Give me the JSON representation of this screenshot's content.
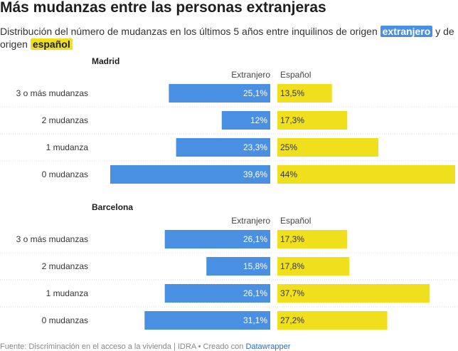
{
  "title": "Más mudanzas entre las personas extranjeras",
  "subtitle": {
    "text_before": "Distribución del número de mudanzas en los últimos 5 años entre inquilinos de origen ",
    "highlight_blue": "extranjero",
    "text_middle": " y de origen ",
    "highlight_yellow": "español"
  },
  "colors": {
    "extranjero": "#4a90e2",
    "espanol": "#f0df1c",
    "grid": "#dddddd"
  },
  "chart_data": [
    {
      "type": "bar",
      "panel_title": "Madrid",
      "categories": [
        "3 o más mudanzas",
        "2 mudanzas",
        "1 mudanza",
        "0 mudanzas"
      ],
      "series": [
        {
          "name": "Extranjero",
          "values": [
            25.1,
            12,
            23.3,
            39.6
          ],
          "labels": [
            "25,1%",
            "12%",
            "23,3%",
            "39,6%"
          ]
        },
        {
          "name": "Español",
          "values": [
            13.5,
            17.3,
            25,
            44
          ],
          "labels": [
            "13,5%",
            "17,3%",
            "25%",
            "44%"
          ]
        }
      ]
    },
    {
      "type": "bar",
      "panel_title": "Barcelona",
      "categories": [
        "3 o más mudanzas",
        "2 mudanzas",
        "1 mudanza",
        "0 mudanzas"
      ],
      "series": [
        {
          "name": "Extranjero",
          "values": [
            26.1,
            15.8,
            26.1,
            31.1
          ],
          "labels": [
            "26,1%",
            "15,8%",
            "26,1%",
            "31,1%"
          ]
        },
        {
          "name": "Español",
          "values": [
            17.3,
            17.8,
            37.7,
            27.2
          ],
          "labels": [
            "17,3%",
            "17,8%",
            "37,7%",
            "27,2%"
          ]
        }
      ]
    }
  ],
  "source": {
    "text": "Fuente: Discriminación en el acceso a la vivienda | IDRA • Creado con ",
    "link": "Datawrapper"
  }
}
